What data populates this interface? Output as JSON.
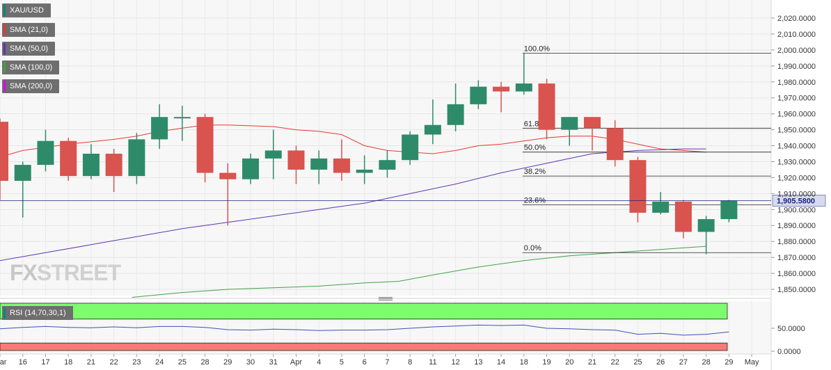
{
  "legend": {
    "items": [
      {
        "label": "XAU/USD",
        "color": "#00897b"
      },
      {
        "label": "SMA (21,0)",
        "color": "#e53935"
      },
      {
        "label": "SMA (50,0)",
        "color": "#5e35b1"
      },
      {
        "label": "SMA (100,0)",
        "color": "#43a047"
      },
      {
        "label": "SMA (200,0)",
        "color": "#d500f9"
      }
    ]
  },
  "rsi_legend": {
    "label": "RSI (14,70,30,1)",
    "color": "#00897b"
  },
  "logo": {
    "prefix": "FX",
    "suffix": "STREET"
  },
  "current_price_label": "1,905.5800",
  "chart_data": [
    {
      "type": "candlestick",
      "title": "",
      "symbol": "XAU/USD",
      "x_labels": [
        "Mar",
        "16",
        "17",
        "18",
        "21",
        "22",
        "23",
        "24",
        "25",
        "28",
        "29",
        "30",
        "31",
        "Apr",
        "4",
        "5",
        "6",
        "7",
        "8",
        "11",
        "12",
        "13",
        "14",
        "18",
        "19",
        "20",
        "21",
        "22",
        "25",
        "26",
        "27",
        "28",
        "29",
        "May"
      ],
      "y_ticks": [
        "1,850.0000",
        "1,860.0000",
        "1,870.0000",
        "1,880.0000",
        "1,890.0000",
        "1,900.0000",
        "1,910.0000",
        "1,920.0000",
        "1,930.0000",
        "1,940.0000",
        "1,950.0000",
        "1,960.0000",
        "1,970.0000",
        "1,980.0000",
        "1,990.0000",
        "2,000.0000",
        "2,010.0000",
        "2,020.0000"
      ],
      "ylim": [
        1845,
        2026
      ],
      "current_price": 1905.58,
      "candles": [
        {
          "date": "Mar 15",
          "open": 1955.0,
          "high": 1957.0,
          "low": 1906.0,
          "close": 1918.0
        },
        {
          "date": "16",
          "open": 1918.0,
          "high": 1930.0,
          "low": 1895.0,
          "close": 1928.0
        },
        {
          "date": "17",
          "open": 1928.0,
          "high": 1950.0,
          "low": 1924.0,
          "close": 1943.0
        },
        {
          "date": "18",
          "open": 1943.0,
          "high": 1945.0,
          "low": 1918.0,
          "close": 1921.0
        },
        {
          "date": "21",
          "open": 1921.0,
          "high": 1941.0,
          "low": 1919.0,
          "close": 1935.0
        },
        {
          "date": "22",
          "open": 1935.0,
          "high": 1938.0,
          "low": 1911.0,
          "close": 1921.0
        },
        {
          "date": "23",
          "open": 1921.0,
          "high": 1948.0,
          "low": 1916.0,
          "close": 1944.0
        },
        {
          "date": "24",
          "open": 1944.0,
          "high": 1966.0,
          "low": 1938.0,
          "close": 1958.0
        },
        {
          "date": "25",
          "open": 1958.0,
          "high": 1965.0,
          "low": 1943.0,
          "close": 1958.0
        },
        {
          "date": "28",
          "open": 1958.0,
          "high": 1960.0,
          "low": 1917.0,
          "close": 1923.0
        },
        {
          "date": "29",
          "open": 1923.0,
          "high": 1929.0,
          "low": 1890.0,
          "close": 1919.0
        },
        {
          "date": "30",
          "open": 1919.0,
          "high": 1935.0,
          "low": 1916.0,
          "close": 1932.0
        },
        {
          "date": "31",
          "open": 1932.0,
          "high": 1950.0,
          "low": 1919.0,
          "close": 1937.0
        },
        {
          "date": "Apr 1",
          "open": 1937.0,
          "high": 1940.0,
          "low": 1916.0,
          "close": 1925.0
        },
        {
          "date": "4",
          "open": 1925.0,
          "high": 1937.0,
          "low": 1916.0,
          "close": 1932.0
        },
        {
          "date": "5",
          "open": 1932.0,
          "high": 1944.0,
          "low": 1918.0,
          "close": 1923.0
        },
        {
          "date": "6",
          "open": 1923.0,
          "high": 1934.0,
          "low": 1916.0,
          "close": 1925.0
        },
        {
          "date": "7",
          "open": 1925.0,
          "high": 1937.0,
          "low": 1920.0,
          "close": 1931.0
        },
        {
          "date": "8",
          "open": 1931.0,
          "high": 1949.0,
          "low": 1928.0,
          "close": 1947.0
        },
        {
          "date": "11",
          "open": 1947.0,
          "high": 1969.0,
          "low": 1941.0,
          "close": 1953.0
        },
        {
          "date": "12",
          "open": 1953.0,
          "high": 1979.0,
          "low": 1949.0,
          "close": 1966.0
        },
        {
          "date": "13",
          "open": 1966.0,
          "high": 1981.0,
          "low": 1963.0,
          "close": 1977.0
        },
        {
          "date": "14",
          "open": 1977.0,
          "high": 1980.0,
          "low": 1961.0,
          "close": 1974.0
        },
        {
          "date": "18",
          "open": 1974.0,
          "high": 1998.0,
          "low": 1972.0,
          "close": 1979.0
        },
        {
          "date": "19",
          "open": 1979.0,
          "high": 1982.0,
          "low": 1944.0,
          "close": 1950.0
        },
        {
          "date": "20",
          "open": 1950.0,
          "high": 1958.0,
          "low": 1940.0,
          "close": 1958.0
        },
        {
          "date": "21",
          "open": 1958.0,
          "high": 1958.0,
          "low": 1937.0,
          "close": 1951.0
        },
        {
          "date": "22",
          "open": 1951.0,
          "high": 1956.0,
          "low": 1927.0,
          "close": 1931.0
        },
        {
          "date": "25",
          "open": 1931.0,
          "high": 1933.0,
          "low": 1892.0,
          "close": 1898.0
        },
        {
          "date": "26",
          "open": 1898.0,
          "high": 1911.0,
          "low": 1897.0,
          "close": 1905.0
        },
        {
          "date": "27",
          "open": 1905.0,
          "high": 1906.0,
          "low": 1882.0,
          "close": 1886.0
        },
        {
          "date": "28",
          "open": 1886.0,
          "high": 1896.0,
          "low": 1872.0,
          "close": 1894.0
        },
        {
          "date": "29",
          "open": 1894.0,
          "high": 1906.0,
          "low": 1892.0,
          "close": 1905.6
        }
      ],
      "sma": [
        {
          "name": "SMA (21,0)",
          "points": [
            [
              0,
              1933
            ],
            [
              1,
              1937
            ],
            [
              3,
              1941
            ],
            [
              5,
              1944
            ],
            [
              6,
              1946
            ],
            [
              7,
              1949
            ],
            [
              8,
              1951
            ],
            [
              9,
              1953
            ],
            [
              10,
              1953
            ],
            [
              12,
              1952
            ],
            [
              13,
              1950
            ],
            [
              14,
              1949
            ],
            [
              15,
              1947
            ],
            [
              16,
              1940
            ],
            [
              17,
              1937
            ],
            [
              18,
              1936
            ],
            [
              19,
              1935
            ],
            [
              20,
              1937
            ],
            [
              21,
              1940
            ],
            [
              22,
              1941
            ],
            [
              23,
              1943
            ],
            [
              24,
              1945
            ],
            [
              25,
              1946
            ],
            [
              26,
              1946
            ],
            [
              27,
              1944
            ],
            [
              28,
              1941
            ],
            [
              29,
              1938
            ],
            [
              30,
              1937
            ],
            [
              31,
              1936
            ]
          ]
        },
        {
          "name": "SMA (50,0)",
          "points": [
            [
              -0.4,
              1867
            ],
            [
              2,
              1873
            ],
            [
              4,
              1878
            ],
            [
              6,
              1883
            ],
            [
              8,
              1888
            ],
            [
              10,
              1892
            ],
            [
              12,
              1896
            ],
            [
              14,
              1900
            ],
            [
              16,
              1904
            ],
            [
              18,
              1910
            ],
            [
              20,
              1916
            ],
            [
              22,
              1923
            ],
            [
              24,
              1929
            ],
            [
              26,
              1935
            ],
            [
              28,
              1937
            ],
            [
              30,
              1938
            ],
            [
              31,
              1938
            ]
          ]
        },
        {
          "name": "SMA (100,0)",
          "points": [
            [
              5.8,
              1845
            ],
            [
              8,
              1848
            ],
            [
              10,
              1850
            ],
            [
              12,
              1851
            ],
            [
              14,
              1852
            ],
            [
              16,
              1854
            ],
            [
              17.5,
              1855
            ],
            [
              19,
              1859
            ],
            [
              21,
              1864
            ],
            [
              23,
              1868
            ],
            [
              25,
              1871
            ],
            [
              27,
              1873
            ],
            [
              29,
              1875
            ],
            [
              30,
              1876
            ],
            [
              31,
              1877
            ]
          ]
        }
      ],
      "fibonacci": [
        {
          "label": "100.0%",
          "value": 1998.0
        },
        {
          "label": "61.8%",
          "value": 1951.0
        },
        {
          "label": "50.0%",
          "value": 1936.0
        },
        {
          "label": "38.2%",
          "value": 1921.0
        },
        {
          "label": "23.6%",
          "value": 1903.0
        },
        {
          "label": "0.0%",
          "value": 1873.0
        }
      ]
    },
    {
      "type": "line",
      "title": "",
      "name": "RSI (14,70,30,1)",
      "y_ticks": [
        "0.0000",
        "50.0000"
      ],
      "ylim": [
        -5,
        80
      ],
      "overbought": 70,
      "oversold": 30,
      "values": [
        49,
        52,
        54,
        52,
        51,
        53,
        51,
        54,
        54,
        52,
        47,
        46,
        48,
        47,
        45,
        46,
        46,
        47,
        50,
        53,
        55,
        57,
        56,
        57,
        50,
        49,
        47,
        46,
        37,
        39,
        35,
        37,
        42
      ]
    }
  ]
}
